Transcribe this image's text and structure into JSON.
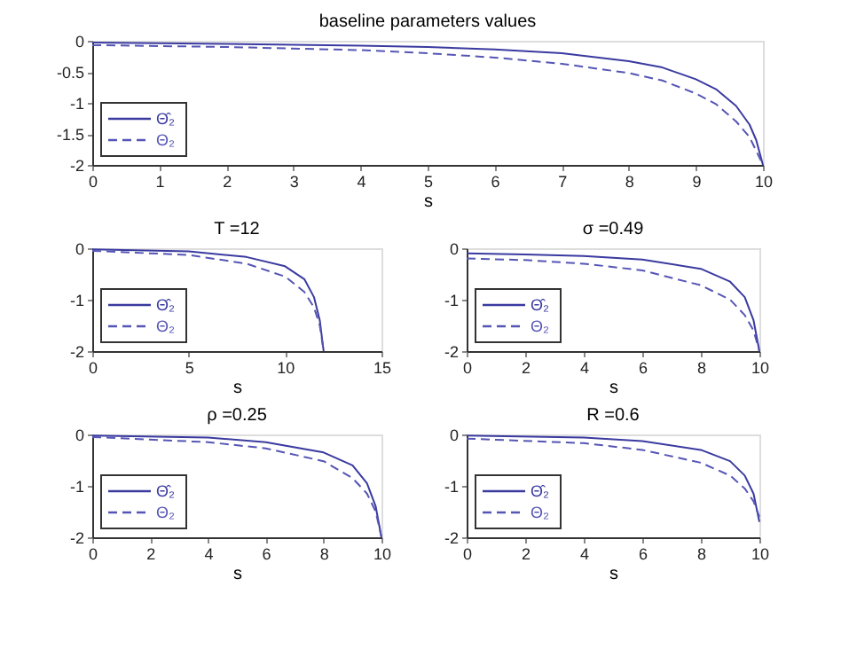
{
  "chart_data": [
    {
      "type": "line",
      "title": "baseline parameters values",
      "xlabel": "s",
      "xlim": [
        0,
        10
      ],
      "xticks": [
        0,
        1,
        2,
        3,
        4,
        5,
        6,
        7,
        8,
        9,
        10
      ],
      "ylim": [
        -2,
        0
      ],
      "yticks": [
        -2,
        -1.5,
        -1,
        -0.5,
        0
      ],
      "grid": false,
      "legend": "bottom left",
      "series": [
        {
          "name": "Θ̂₂",
          "color": "#3a3aa0",
          "line_style": "solid",
          "x": [
            0,
            2,
            4,
            5,
            6,
            7,
            8,
            8.5,
            9,
            9.3,
            9.6,
            9.8,
            9.9,
            10
          ],
          "values": [
            -0.03,
            -0.05,
            -0.08,
            -0.1,
            -0.14,
            -0.2,
            -0.33,
            -0.43,
            -0.62,
            -0.78,
            -1.05,
            -1.35,
            -1.6,
            -2
          ]
        },
        {
          "name": "Θ₂",
          "color": "#5555b5",
          "line_style": "dashed",
          "x": [
            0,
            2,
            4,
            5,
            6,
            7,
            8,
            8.5,
            9,
            9.3,
            9.6,
            9.8,
            10
          ],
          "values": [
            -0.07,
            -0.1,
            -0.15,
            -0.2,
            -0.27,
            -0.37,
            -0.52,
            -0.64,
            -0.85,
            -1.02,
            -1.3,
            -1.55,
            -2
          ]
        }
      ]
    },
    {
      "type": "line",
      "title": "T =12",
      "xlabel": "s",
      "xlim": [
        0,
        15
      ],
      "xticks": [
        0,
        5,
        10,
        15
      ],
      "ylim": [
        -2,
        0
      ],
      "yticks": [
        -2,
        -1,
        0
      ],
      "grid": false,
      "legend": "bottom left",
      "series": [
        {
          "name": "Θ̂₂",
          "color": "#3a3aa0",
          "line_style": "solid",
          "x": [
            0,
            5,
            8,
            10,
            11,
            11.5,
            11.8,
            12
          ],
          "values": [
            -0.02,
            -0.06,
            -0.17,
            -0.35,
            -0.6,
            -0.95,
            -1.4,
            -2
          ]
        },
        {
          "name": "Θ₂",
          "color": "#5555b5",
          "line_style": "dashed",
          "x": [
            0,
            5,
            8,
            10,
            11,
            11.5,
            11.8,
            12
          ],
          "values": [
            -0.05,
            -0.13,
            -0.3,
            -0.55,
            -0.85,
            -1.15,
            -1.5,
            -2
          ]
        }
      ]
    },
    {
      "type": "line",
      "title": "σ =0.49",
      "xlabel": "s",
      "xlim": [
        0,
        10
      ],
      "xticks": [
        0,
        2,
        4,
        6,
        8,
        10
      ],
      "ylim": [
        -2,
        0
      ],
      "yticks": [
        -2,
        -1,
        0
      ],
      "grid": false,
      "legend": "bottom left",
      "series": [
        {
          "name": "Θ̂₂",
          "color": "#3a3aa0",
          "line_style": "solid",
          "x": [
            0,
            2,
            4,
            6,
            8,
            9,
            9.5,
            9.8,
            10
          ],
          "values": [
            -0.1,
            -0.12,
            -0.15,
            -0.22,
            -0.4,
            -0.65,
            -0.95,
            -1.4,
            -2
          ]
        },
        {
          "name": "Θ₂",
          "color": "#5555b5",
          "line_style": "dashed",
          "x": [
            0,
            2,
            4,
            6,
            8,
            9,
            9.5,
            9.8,
            10
          ],
          "values": [
            -0.2,
            -0.23,
            -0.3,
            -0.43,
            -0.72,
            -1.0,
            -1.3,
            -1.6,
            -2
          ]
        }
      ]
    },
    {
      "type": "line",
      "title": "ρ =0.25",
      "xlabel": "s",
      "xlim": [
        0,
        10
      ],
      "xticks": [
        0,
        2,
        4,
        6,
        8,
        10
      ],
      "ylim": [
        -2,
        0
      ],
      "yticks": [
        -2,
        -1,
        0
      ],
      "grid": false,
      "legend": "bottom left",
      "series": [
        {
          "name": "Θ̂₂",
          "color": "#3a3aa0",
          "line_style": "solid",
          "x": [
            0,
            4,
            6,
            8,
            9,
            9.5,
            9.8,
            10
          ],
          "values": [
            -0.02,
            -0.06,
            -0.15,
            -0.35,
            -0.6,
            -0.95,
            -1.4,
            -2
          ]
        },
        {
          "name": "Θ₂",
          "color": "#5555b5",
          "line_style": "dashed",
          "x": [
            0,
            4,
            6,
            8,
            9,
            9.5,
            9.8,
            10
          ],
          "values": [
            -0.05,
            -0.15,
            -0.27,
            -0.52,
            -0.85,
            -1.15,
            -1.5,
            -2
          ]
        }
      ]
    },
    {
      "type": "line",
      "title": "R =0.6",
      "xlabel": "s",
      "xlim": [
        0,
        10
      ],
      "xticks": [
        0,
        2,
        4,
        6,
        8,
        10
      ],
      "ylim": [
        -2,
        0
      ],
      "yticks": [
        -2,
        -1,
        0
      ],
      "grid": false,
      "legend": "bottom left",
      "series": [
        {
          "name": "Θ̂₂",
          "color": "#3a3aa0",
          "line_style": "solid",
          "x": [
            0,
            4,
            6,
            8,
            9,
            9.5,
            9.8,
            10
          ],
          "values": [
            -0.02,
            -0.06,
            -0.13,
            -0.3,
            -0.52,
            -0.8,
            -1.15,
            -1.7
          ]
        },
        {
          "name": "Θ₂",
          "color": "#5555b5",
          "line_style": "dashed",
          "x": [
            0,
            4,
            6,
            8,
            9,
            9.5,
            9.8,
            10
          ],
          "values": [
            -0.08,
            -0.17,
            -0.3,
            -0.55,
            -0.8,
            -1.05,
            -1.3,
            -1.6
          ]
        }
      ]
    }
  ]
}
